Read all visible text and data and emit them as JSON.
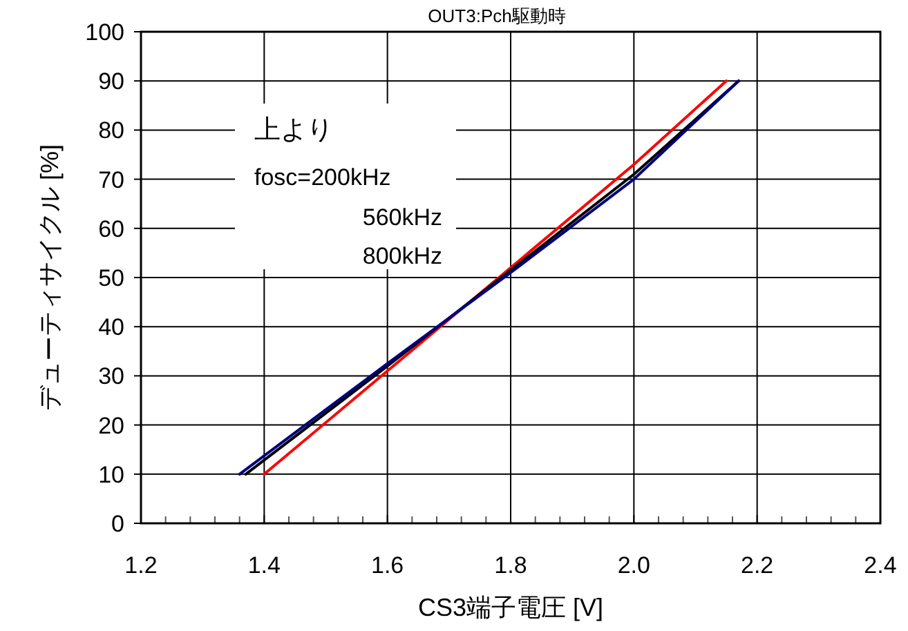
{
  "chart_data": {
    "type": "line",
    "title": "OUT3:Pch駆動時",
    "xlabel": "CS3端子電圧 [V]",
    "ylabel": "デューティサイクル [%]",
    "annotations": [
      "上より",
      "fosc=200kHz",
      "560kHz",
      "800kHz"
    ],
    "series": [
      {
        "color": "#ff0000",
        "x": [
          1.4,
          1.6,
          1.8,
          2.0,
          2.15
        ],
        "values": [
          10,
          31,
          52,
          73,
          90
        ]
      },
      {
        "color": "#000000",
        "x": [
          1.37,
          1.6,
          1.8,
          2.0,
          2.17
        ],
        "values": [
          10,
          32,
          51.5,
          71,
          90
        ]
      },
      {
        "color": "#000080",
        "x": [
          1.36,
          1.6,
          1.8,
          2.0,
          2.17
        ],
        "values": [
          10,
          32.5,
          51,
          70,
          90
        ]
      }
    ],
    "xlim": [
      1.2,
      2.4
    ],
    "xticks": [
      {
        "value": 1.2,
        "label": "1.2"
      },
      {
        "value": 1.24,
        "label": null
      },
      {
        "value": 1.28,
        "label": null
      },
      {
        "value": 1.32,
        "label": null
      },
      {
        "value": 1.36,
        "label": null
      },
      {
        "value": 1.4,
        "label": "1.4"
      },
      {
        "value": 1.44,
        "label": null
      },
      {
        "value": 1.48,
        "label": null
      },
      {
        "value": 1.52,
        "label": null
      },
      {
        "value": 1.56,
        "label": null
      },
      {
        "value": 1.6,
        "label": "1.6"
      },
      {
        "value": 1.64,
        "label": null
      },
      {
        "value": 1.68,
        "label": null
      },
      {
        "value": 1.72,
        "label": null
      },
      {
        "value": 1.76,
        "label": null
      },
      {
        "value": 1.8,
        "label": "1.8"
      },
      {
        "value": 1.84,
        "label": null
      },
      {
        "value": 1.88,
        "label": null
      },
      {
        "value": 1.92,
        "label": null
      },
      {
        "value": 1.96,
        "label": null
      },
      {
        "value": 2.0,
        "label": "2.0"
      },
      {
        "value": 2.04,
        "label": null
      },
      {
        "value": 2.08,
        "label": null
      },
      {
        "value": 2.12,
        "label": null
      },
      {
        "value": 2.16,
        "label": null
      },
      {
        "value": 2.2,
        "label": "2.2"
      },
      {
        "value": 2.24,
        "label": null
      },
      {
        "value": 2.28,
        "label": null
      },
      {
        "value": 2.32,
        "label": null
      },
      {
        "value": 2.36,
        "label": null
      },
      {
        "value": 2.4,
        "label": "2.4"
      }
    ],
    "ylim": [
      0,
      100
    ],
    "yticks": [
      0,
      10,
      20,
      30,
      40,
      50,
      60,
      70,
      80,
      90,
      100
    ],
    "grid": true,
    "marker": "none",
    "line_style": "solid"
  }
}
